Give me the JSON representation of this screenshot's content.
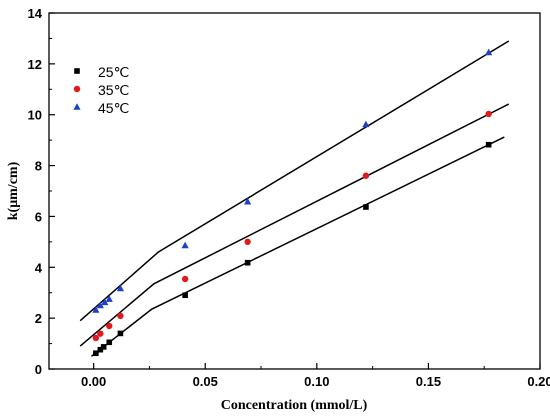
{
  "chart_data": {
    "type": "scatter",
    "title": "",
    "xlabel": "Concentration (mmol/L)",
    "ylabel": "k(μm/cm)",
    "xlim": [
      -0.02,
      0.2
    ],
    "ylim": [
      0,
      14
    ],
    "x_ticks": [
      "0.00",
      "0.05",
      "0.10",
      "0.15",
      "0.20"
    ],
    "y_ticks": [
      "0",
      "2",
      "4",
      "6",
      "8",
      "10",
      "12",
      "14"
    ],
    "grid": false,
    "legend_position": "top-left",
    "series": [
      {
        "name": "25℃",
        "color": "#000000",
        "marker": "square",
        "points": [
          {
            "x": 0.001,
            "y": 0.62
          },
          {
            "x": 0.003,
            "y": 0.76
          },
          {
            "x": 0.0045,
            "y": 0.87
          },
          {
            "x": 0.007,
            "y": 1.05
          },
          {
            "x": 0.012,
            "y": 1.4
          },
          {
            "x": 0.041,
            "y": 2.9
          },
          {
            "x": 0.069,
            "y": 4.18
          },
          {
            "x": 0.122,
            "y": 6.37
          },
          {
            "x": 0.177,
            "y": 8.82
          }
        ],
        "fit_line": [
          {
            "x": -0.001,
            "y": 0.5
          },
          {
            "x": 0.026,
            "y": 2.35
          },
          {
            "x": 0.184,
            "y": 9.12
          }
        ]
      },
      {
        "name": "35℃",
        "color": "#e31a1c",
        "marker": "circle",
        "points": [
          {
            "x": 0.001,
            "y": 1.22
          },
          {
            "x": 0.003,
            "y": 1.39
          },
          {
            "x": 0.007,
            "y": 1.69
          },
          {
            "x": 0.012,
            "y": 2.09
          },
          {
            "x": 0.041,
            "y": 3.54
          },
          {
            "x": 0.069,
            "y": 5.0
          },
          {
            "x": 0.122,
            "y": 7.6
          },
          {
            "x": 0.177,
            "y": 10.03
          }
        ],
        "fit_line": [
          {
            "x": -0.006,
            "y": 0.9
          },
          {
            "x": 0.027,
            "y": 3.35
          },
          {
            "x": 0.186,
            "y": 10.42
          }
        ]
      },
      {
        "name": "45℃",
        "color": "#1f3fcf",
        "marker": "triangle",
        "points": [
          {
            "x": 0.001,
            "y": 2.32
          },
          {
            "x": 0.003,
            "y": 2.5
          },
          {
            "x": 0.005,
            "y": 2.62
          },
          {
            "x": 0.007,
            "y": 2.75
          },
          {
            "x": 0.012,
            "y": 3.17
          },
          {
            "x": 0.041,
            "y": 4.86
          },
          {
            "x": 0.069,
            "y": 6.58
          },
          {
            "x": 0.122,
            "y": 9.62
          },
          {
            "x": 0.177,
            "y": 12.45
          }
        ],
        "fit_line": [
          {
            "x": -0.006,
            "y": 1.9
          },
          {
            "x": 0.029,
            "y": 4.6
          },
          {
            "x": 0.186,
            "y": 12.9
          }
        ]
      }
    ]
  }
}
